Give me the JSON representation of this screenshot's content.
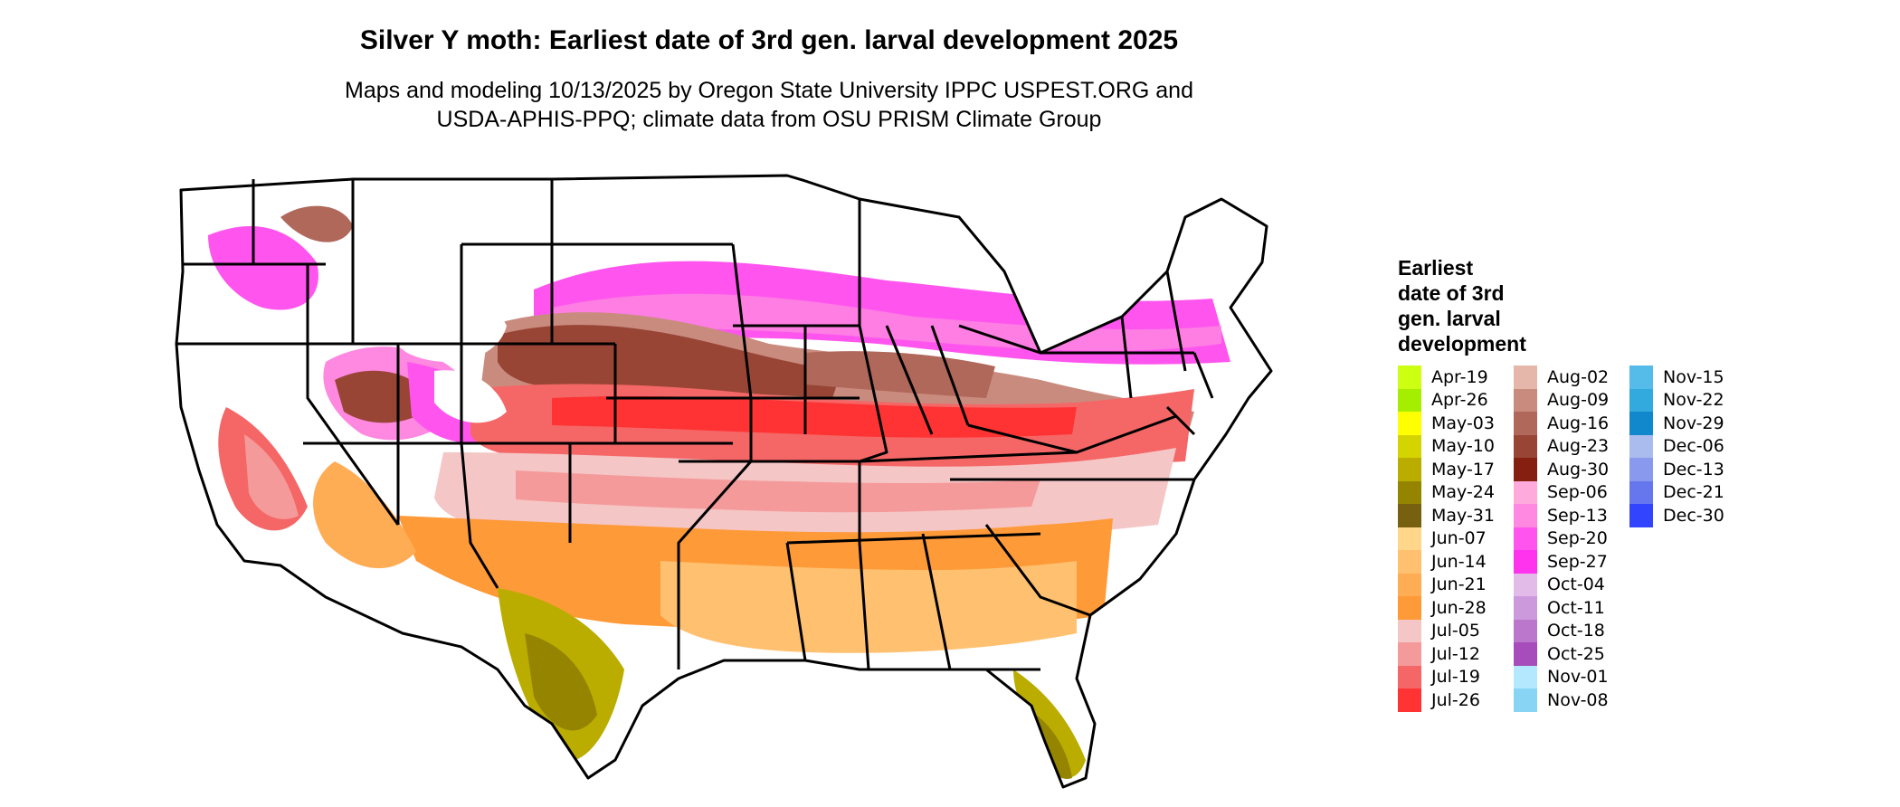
{
  "title": "Silver Y moth: Earliest date of 3rd gen. larval development 2025",
  "subtitle_line1": "Maps and modeling 10/13/2025 by Oregon State University IPPC USPEST.ORG and",
  "subtitle_line2": "USDA-APHIS-PPQ; climate data from OSU PRISM Climate Group",
  "legend": {
    "title_lines": [
      "Earliest",
      "date of 3rd",
      "gen. larval",
      "development"
    ],
    "columns": [
      [
        {
          "label": "Apr-19",
          "color": "#ccff11"
        },
        {
          "label": "Apr-26",
          "color": "#a5ee00"
        },
        {
          "label": "May-03",
          "color": "#ffff00"
        },
        {
          "label": "May-10",
          "color": "#d4d400"
        },
        {
          "label": "May-17",
          "color": "#bbad00"
        },
        {
          "label": "May-24",
          "color": "#948400"
        },
        {
          "label": "May-31",
          "color": "#776010"
        },
        {
          "label": "Jun-07",
          "color": "#ffd68a"
        },
        {
          "label": "Jun-14",
          "color": "#ffc170"
        },
        {
          "label": "Jun-21",
          "color": "#ffad55"
        },
        {
          "label": "Jun-28",
          "color": "#ff9a38"
        },
        {
          "label": "Jul-05",
          "color": "#f5c6c6"
        },
        {
          "label": "Jul-12",
          "color": "#f59a9a"
        },
        {
          "label": "Jul-19",
          "color": "#f56666"
        },
        {
          "label": "Jul-26",
          "color": "#ff3333"
        }
      ],
      [
        {
          "label": "Aug-02",
          "color": "#e5b7ab"
        },
        {
          "label": "Aug-09",
          "color": "#c98b7e"
        },
        {
          "label": "Aug-16",
          "color": "#b0685a"
        },
        {
          "label": "Aug-23",
          "color": "#984536"
        },
        {
          "label": "Aug-30",
          "color": "#852010"
        },
        {
          "label": "Sep-06",
          "color": "#ffaadd"
        },
        {
          "label": "Sep-13",
          "color": "#ff88e0"
        },
        {
          "label": "Sep-20",
          "color": "#ff55ee"
        },
        {
          "label": "Sep-27",
          "color": "#ff33ee"
        },
        {
          "label": "Oct-04",
          "color": "#e2bbe8"
        },
        {
          "label": "Oct-11",
          "color": "#cc99dd"
        },
        {
          "label": "Oct-18",
          "color": "#bb77cc"
        },
        {
          "label": "Oct-25",
          "color": "#a64dbb"
        },
        {
          "label": "Nov-01",
          "color": "#b3e8ff"
        },
        {
          "label": "Nov-08",
          "color": "#88d4f5"
        }
      ],
      [
        {
          "label": "Nov-15",
          "color": "#55bbe8"
        },
        {
          "label": "Nov-22",
          "color": "#33aadd"
        },
        {
          "label": "Nov-29",
          "color": "#1188cc"
        },
        {
          "label": "Dec-06",
          "color": "#aabbee"
        },
        {
          "label": "Dec-13",
          "color": "#8899ee"
        },
        {
          "label": "Dec-21",
          "color": "#6677ee"
        },
        {
          "label": "Dec-30",
          "color": "#3344ff"
        }
      ]
    ]
  }
}
